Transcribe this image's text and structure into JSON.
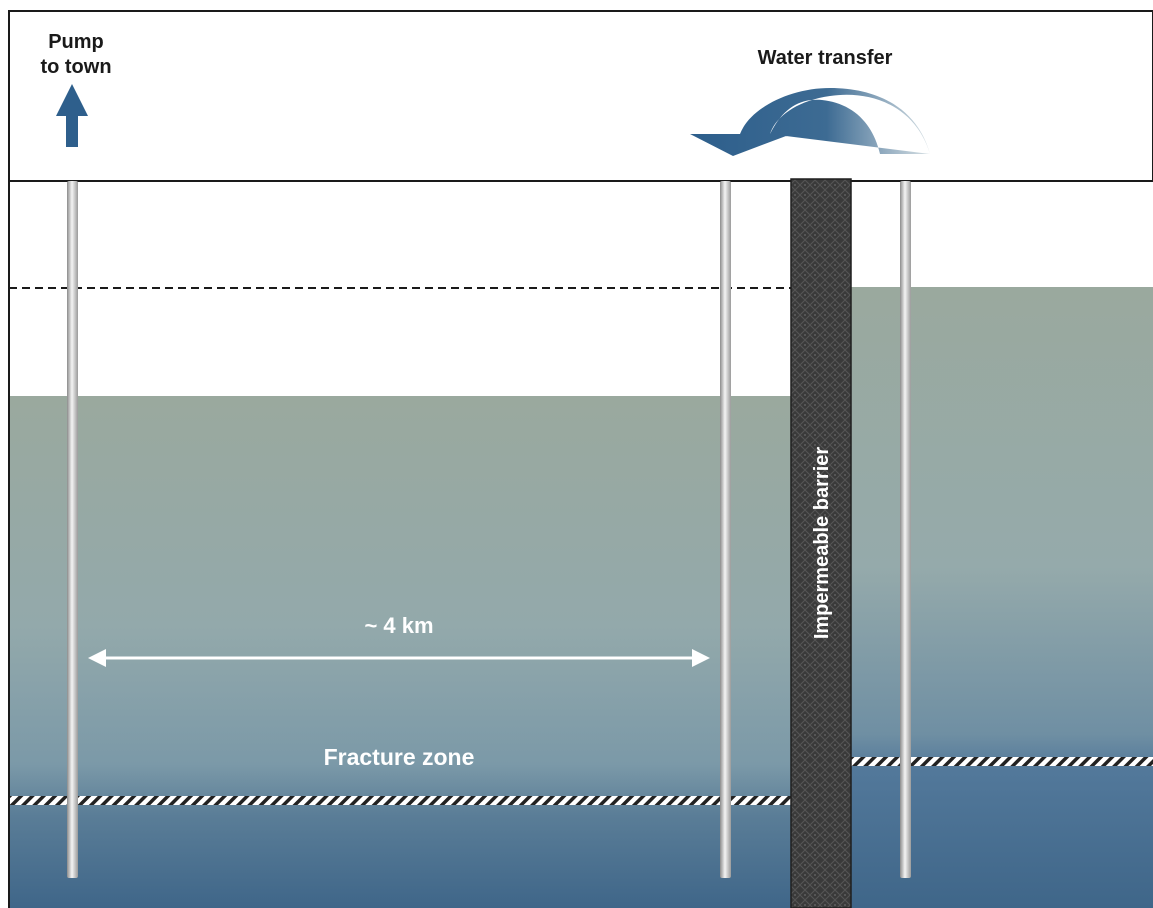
{
  "labels": {
    "pump_line1": "Pump",
    "pump_line2": "to town",
    "water_transfer": "Water transfer",
    "distance": "~ 4 km",
    "fracture_zone": "Fracture zone",
    "barrier": "Impermeable barrier"
  },
  "colors": {
    "frame": "#1a1a1a",
    "water_top": "#9aa99e",
    "water_mid": "#8ea5ab",
    "water_bottom": "#3f6689",
    "arrow_blue": "#2e5f8c",
    "barrier": "#3a3a3a",
    "text_dark": "#1a1a1a",
    "text_light": "#ffffff"
  },
  "icons": {
    "pump_arrow": "up-arrow-icon",
    "transfer_arrow": "curved-arrow-icon",
    "distance_arrow": "double-headed-arrow-icon"
  }
}
